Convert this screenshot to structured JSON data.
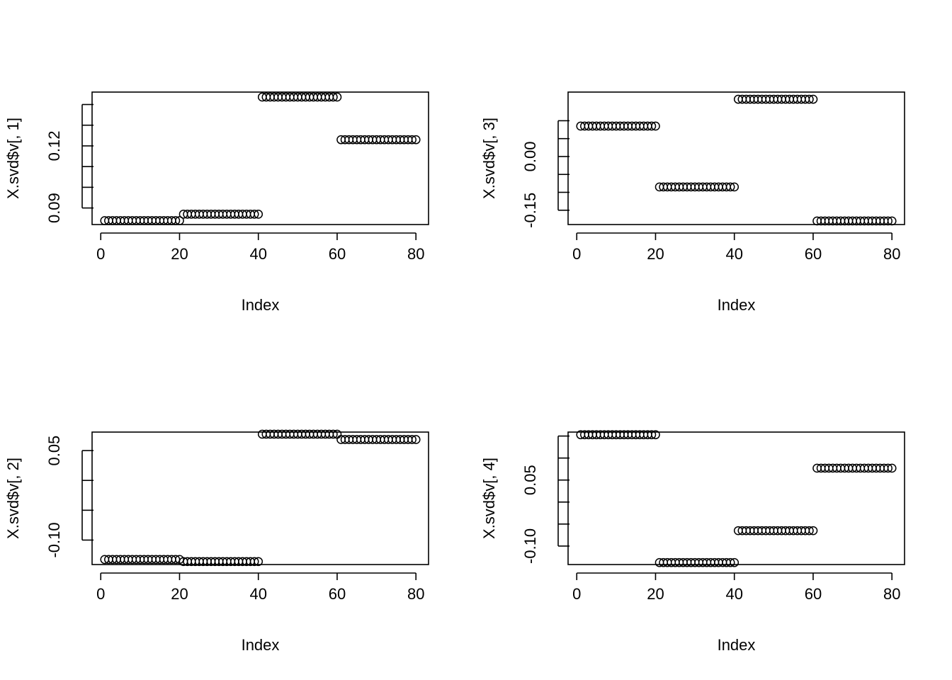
{
  "chart_data": [
    {
      "type": "scatter",
      "xlabel": "Index",
      "ylabel": "X.svd$v[, 1]",
      "xlim": [
        0,
        80
      ],
      "ylim": [
        0.082,
        0.146
      ],
      "xticks": [
        0,
        20,
        40,
        60,
        80
      ],
      "xtick_labels": [
        "0",
        "20",
        "40",
        "60",
        "80"
      ],
      "yticks": [
        0.08,
        0.09,
        0.1,
        0.11,
        0.12,
        0.13,
        0.14
      ],
      "ytick_labels": [
        "0.09",
        "0.12"
      ],
      "ytick_label_values": [
        0.09,
        0.12
      ],
      "groups": [
        {
          "x_from": 1,
          "x_to": 20,
          "y": 0.0839
        },
        {
          "x_from": 21,
          "x_to": 40,
          "y": 0.087
        },
        {
          "x_from": 41,
          "x_to": 60,
          "y": 0.1436
        },
        {
          "x_from": 61,
          "x_to": 80,
          "y": 0.123
        }
      ]
    },
    {
      "type": "scatter",
      "xlabel": "Index",
      "ylabel": "X.svd$v[, 3]",
      "xlim": [
        0,
        80
      ],
      "ylim": [
        -0.19,
        0.18
      ],
      "xticks": [
        0,
        20,
        40,
        60,
        80
      ],
      "xtick_labels": [
        "0",
        "20",
        "40",
        "60",
        "80"
      ],
      "yticks": [
        -0.15,
        -0.1,
        -0.05,
        0.0,
        0.05,
        0.1
      ],
      "ytick_labels": [
        "-0.15",
        "0.00"
      ],
      "ytick_label_values": [
        -0.15,
        0.0
      ],
      "groups": [
        {
          "x_from": 1,
          "x_to": 20,
          "y": 0.085
        },
        {
          "x_from": 21,
          "x_to": 40,
          "y": -0.085
        },
        {
          "x_from": 41,
          "x_to": 60,
          "y": 0.16
        },
        {
          "x_from": 61,
          "x_to": 80,
          "y": -0.18
        }
      ]
    },
    {
      "type": "scatter",
      "xlabel": "Index",
      "ylabel": "X.svd$v[, 2]",
      "xlim": [
        0,
        80
      ],
      "ylim": [
        -0.141,
        0.081
      ],
      "xticks": [
        0,
        20,
        40,
        60,
        80
      ],
      "xtick_labels": [
        "0",
        "20",
        "40",
        "60",
        "80"
      ],
      "yticks": [
        -0.1,
        -0.05,
        0.0,
        0.05
      ],
      "ytick_labels": [
        "-0.10",
        "0.05"
      ],
      "ytick_label_values": [
        -0.1,
        0.05
      ],
      "groups": [
        {
          "x_from": 1,
          "x_to": 20,
          "y": -0.1325
        },
        {
          "x_from": 21,
          "x_to": 40,
          "y": -0.136
        },
        {
          "x_from": 41,
          "x_to": 60,
          "y": 0.0775
        },
        {
          "x_from": 61,
          "x_to": 80,
          "y": 0.0685
        }
      ]
    },
    {
      "type": "scatter",
      "xlabel": "Index",
      "ylabel": "X.svd$v[, 4]",
      "xlim": [
        0,
        80
      ],
      "ylim": [
        -0.142,
        0.159
      ],
      "xticks": [
        0,
        20,
        40,
        60,
        80
      ],
      "xtick_labels": [
        "0",
        "20",
        "40",
        "60",
        "80"
      ],
      "yticks": [
        -0.1,
        -0.05,
        0.0,
        0.05,
        0.1,
        0.15
      ],
      "ytick_labels": [
        "-0.10",
        "0.05"
      ],
      "ytick_label_values": [
        -0.1,
        0.05
      ],
      "groups": [
        {
          "x_from": 1,
          "x_to": 20,
          "y": 0.153
        },
        {
          "x_from": 21,
          "x_to": 40,
          "y": -0.1375
        },
        {
          "x_from": 41,
          "x_to": 60,
          "y": -0.065
        },
        {
          "x_from": 61,
          "x_to": 80,
          "y": 0.077
        }
      ]
    }
  ]
}
